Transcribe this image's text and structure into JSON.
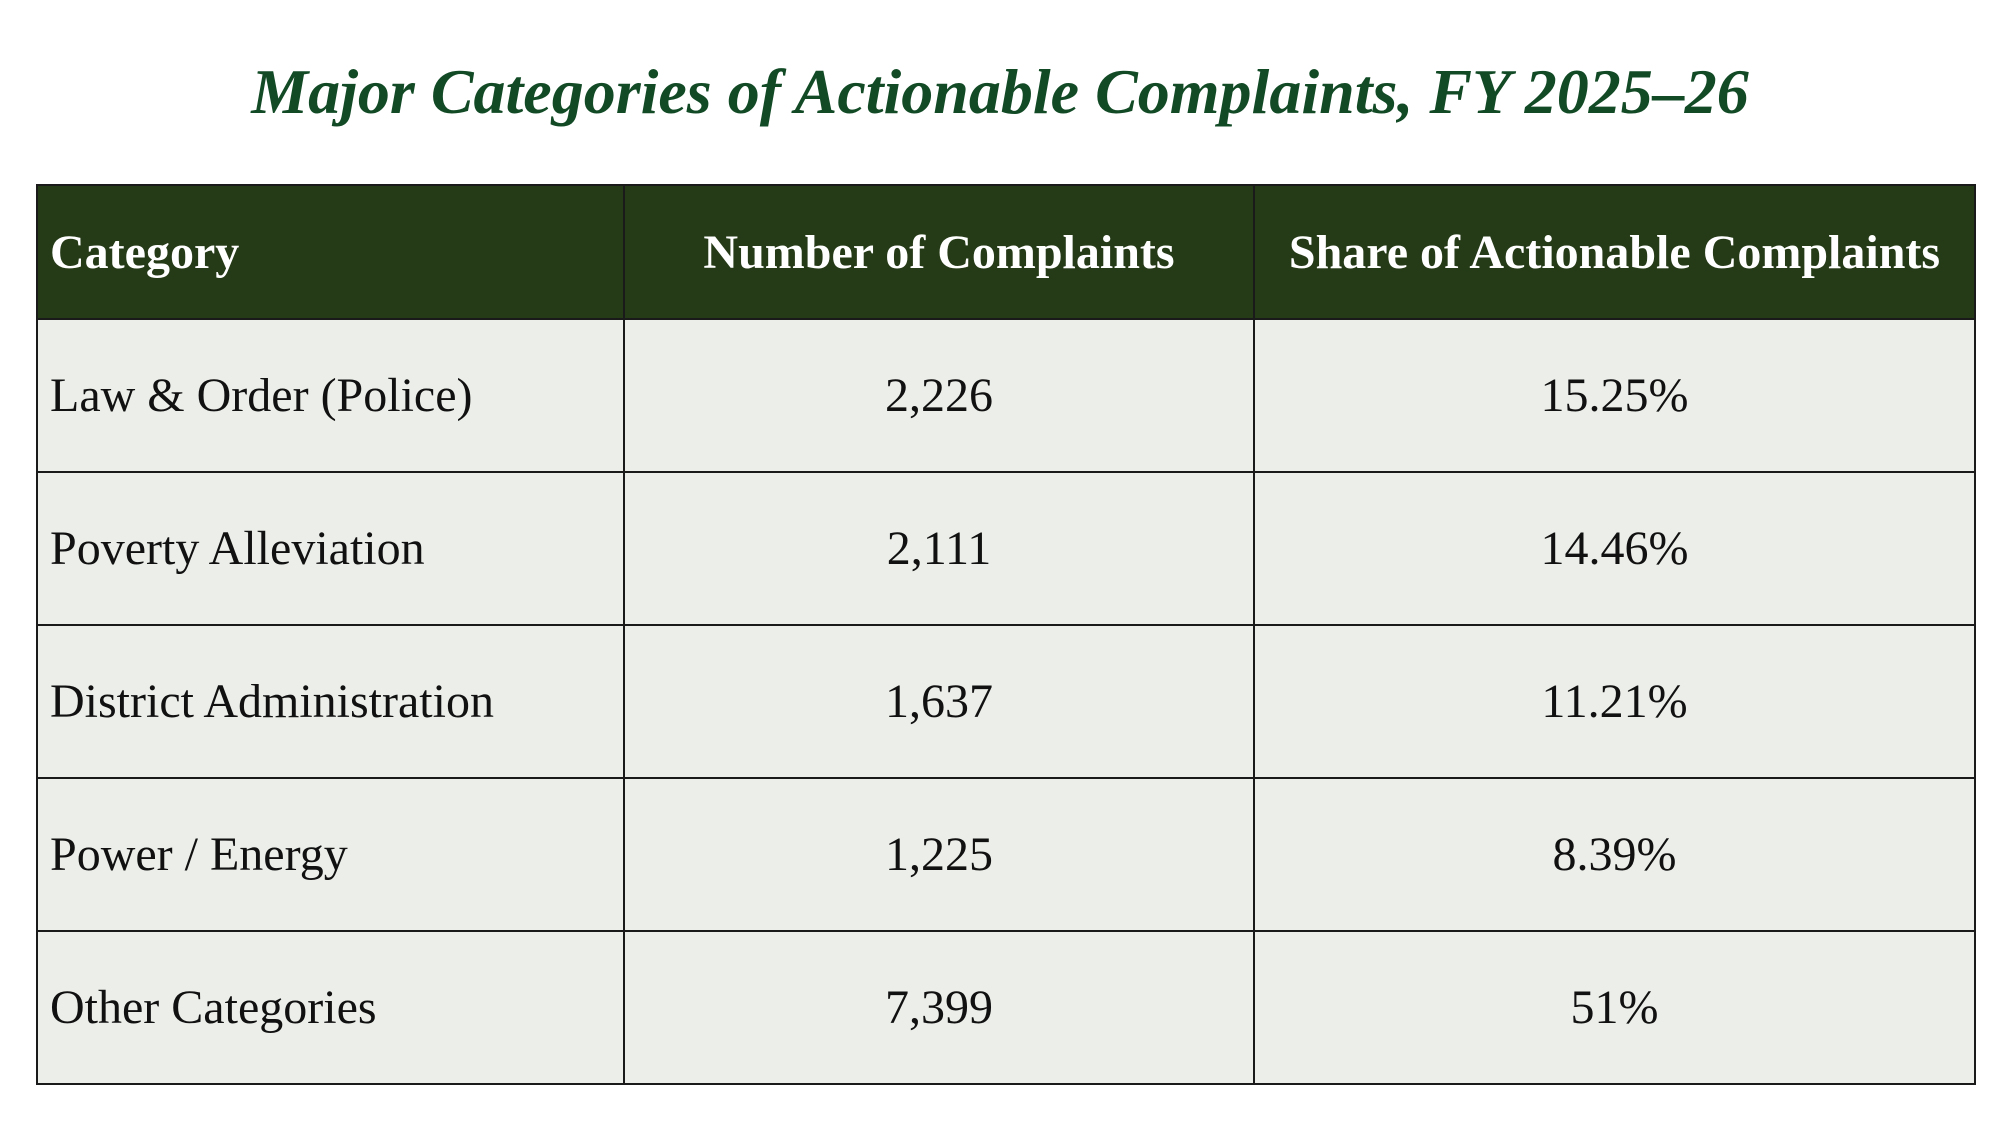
{
  "chart_data": {
    "type": "table",
    "title": "Major Categories of Actionable Complaints, FY 2025–26",
    "columns": [
      "Category",
      "Number of Complaints",
      "Share of Actionable Complaints"
    ],
    "rows": [
      [
        "Law & Order (Police)",
        "2,226",
        "15.25%"
      ],
      [
        "Poverty Alleviation",
        "2,111",
        "14.46%"
      ],
      [
        "District Administration",
        "1,637",
        "11.21%"
      ],
      [
        "Power / Energy",
        "1,225",
        "8.39%"
      ],
      [
        "Other Categories",
        "7,399",
        "51%"
      ]
    ]
  },
  "colors": {
    "title": "#124a26",
    "header_background": "#253a17",
    "header_text": "#ffffff",
    "row_background": "#ebeee9",
    "border": "#1a1a1a"
  }
}
